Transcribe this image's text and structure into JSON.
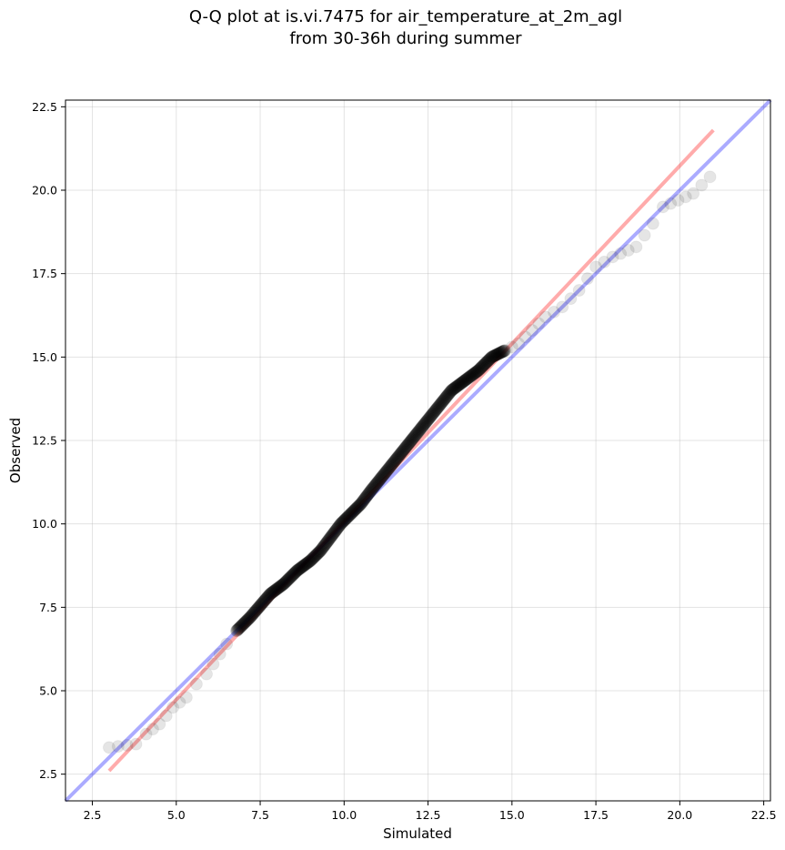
{
  "chart_data": {
    "type": "scatter",
    "title": "Q-Q plot at is.vi.7475 for air_temperature_at_2m_agl",
    "subtitle": "from 30-36h during summer",
    "xlabel": "Simulated",
    "ylabel": "Observed",
    "xlim": [
      1.7,
      22.7
    ],
    "ylim": [
      1.7,
      22.7
    ],
    "xticks": [
      "2.5",
      "5.0",
      "7.5",
      "10.0",
      "12.5",
      "15.0",
      "17.5",
      "20.0",
      "22.5"
    ],
    "yticks": [
      "2.5",
      "5.0",
      "7.5",
      "10.0",
      "12.5",
      "15.0",
      "17.5",
      "20.0",
      "22.5"
    ],
    "grid": true,
    "legend": "none",
    "colors": {
      "points": "#000000",
      "identity_line": "#0000ff",
      "fit_line": "#ff0000"
    },
    "reference_lines": [
      {
        "kind": "identity",
        "x": [
          1.7,
          22.7
        ],
        "y": [
          1.7,
          22.7
        ],
        "color": "#0000ff"
      },
      {
        "kind": "fit",
        "x": [
          3.0,
          21.0
        ],
        "y": [
          2.6,
          21.8
        ],
        "color": "#ff0000"
      }
    ],
    "anchor_points": {
      "x": [
        3.0,
        3.8,
        4.1,
        4.5,
        4.9,
        5.3,
        5.6,
        5.9,
        6.1,
        6.3,
        6.5,
        6.8,
        7.2,
        7.8,
        8.2,
        8.6,
        9.0,
        9.3,
        9.6,
        9.9,
        10.2,
        10.5,
        10.8,
        11.2,
        11.6,
        12.0,
        12.4,
        12.8,
        13.2,
        13.6,
        14.0,
        14.4,
        14.8,
        15.2,
        15.6,
        16.0,
        16.5,
        17.0,
        17.5,
        18.0,
        18.7,
        19.2,
        19.5,
        20.4,
        20.9
      ],
      "y": [
        3.3,
        3.4,
        3.7,
        4.0,
        4.5,
        4.8,
        5.2,
        5.5,
        5.8,
        6.1,
        6.4,
        6.8,
        7.2,
        7.9,
        8.2,
        8.6,
        8.9,
        9.2,
        9.6,
        10.0,
        10.3,
        10.6,
        11.0,
        11.5,
        12.0,
        12.5,
        13.0,
        13.5,
        14.0,
        14.3,
        14.6,
        15.0,
        15.2,
        15.4,
        15.8,
        16.2,
        16.5,
        17.0,
        17.7,
        18.0,
        18.3,
        19.0,
        19.5,
        19.9,
        20.4
      ]
    }
  }
}
